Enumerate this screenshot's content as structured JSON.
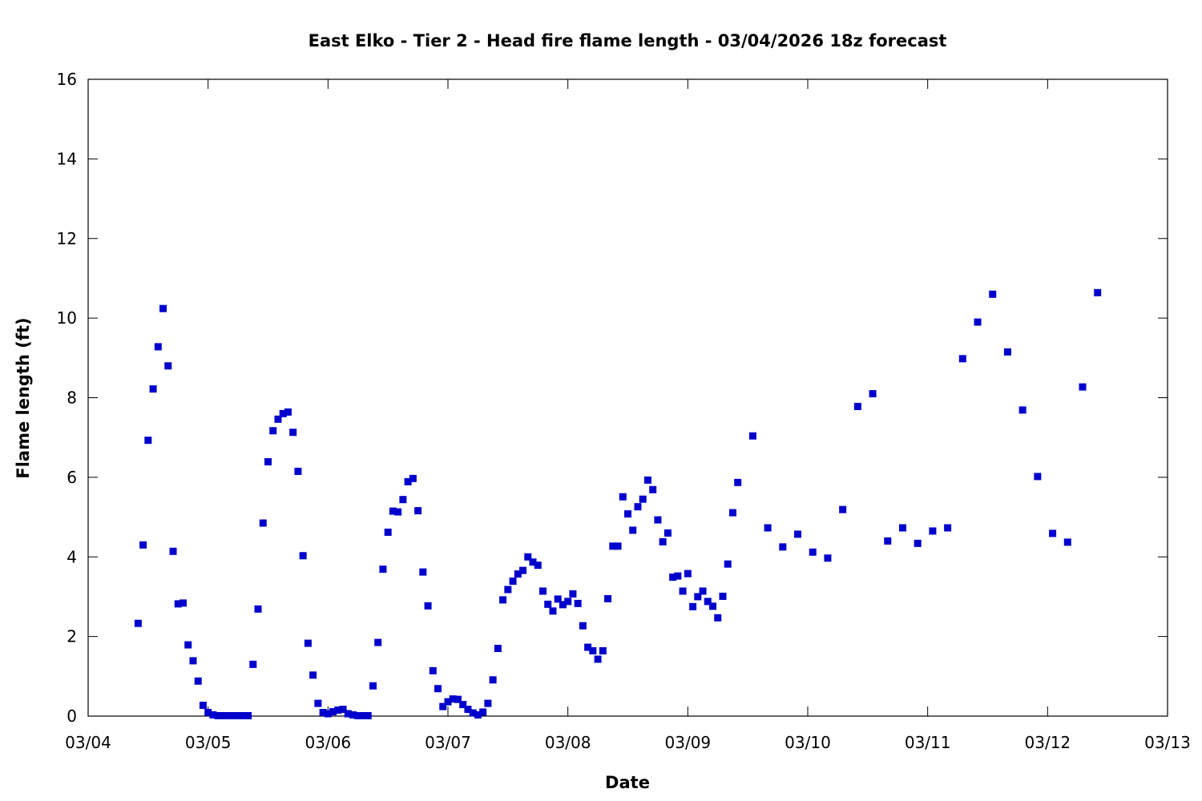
{
  "chart_data": {
    "type": "scatter",
    "title": "East Elko - Tier 2 - Head fire flame length - 03/04/2026 18z forecast",
    "xlabel": "Date",
    "ylabel": "Flame length (ft)",
    "xlim": [
      "03/04 00:00",
      "03/13 00:00"
    ],
    "ylim": [
      0,
      16
    ],
    "x_ticks": [
      "03/04",
      "03/05",
      "03/06",
      "03/07",
      "03/08",
      "03/09",
      "03/10",
      "03/11",
      "03/12",
      "03/13"
    ],
    "y_ticks": [
      "0",
      "2",
      "4",
      "6",
      "8",
      "10",
      "12",
      "14",
      "16"
    ],
    "grid": false,
    "legend": "none",
    "colors": {
      "marker": "#0000cc",
      "axis": "#000000"
    },
    "series": [
      {
        "x": [
          "03/04 10:00",
          "03/04 11:00",
          "03/04 12:00",
          "03/04 13:00",
          "03/04 14:00",
          "03/04 15:00",
          "03/04 16:00",
          "03/04 17:00",
          "03/04 18:00",
          "03/04 19:00",
          "03/04 20:00",
          "03/04 21:00",
          "03/04 22:00",
          "03/04 23:00",
          "03/05 00:00",
          "03/05 01:00",
          "03/05 02:00",
          "03/05 03:00",
          "03/05 04:00",
          "03/05 05:00",
          "03/05 06:00",
          "03/05 07:00",
          "03/05 08:00",
          "03/05 09:00",
          "03/05 10:00",
          "03/05 11:00",
          "03/05 12:00",
          "03/05 13:00",
          "03/05 14:00",
          "03/05 15:00",
          "03/05 16:00",
          "03/05 17:00",
          "03/05 18:00",
          "03/05 19:00",
          "03/05 20:00",
          "03/05 21:00",
          "03/05 22:00",
          "03/05 23:00",
          "03/06 00:00",
          "03/06 01:00",
          "03/06 02:00",
          "03/06 03:00",
          "03/06 04:00",
          "03/06 05:00",
          "03/06 06:00",
          "03/06 07:00",
          "03/06 08:00",
          "03/06 09:00",
          "03/06 10:00",
          "03/06 11:00",
          "03/06 12:00",
          "03/06 13:00",
          "03/06 14:00",
          "03/06 15:00",
          "03/06 16:00",
          "03/06 17:00",
          "03/06 18:00",
          "03/06 19:00",
          "03/06 20:00",
          "03/06 21:00",
          "03/06 22:00",
          "03/06 23:00",
          "03/07 00:00",
          "03/07 01:00",
          "03/07 02:00",
          "03/07 03:00",
          "03/07 04:00",
          "03/07 05:00",
          "03/07 06:00",
          "03/07 07:00",
          "03/07 08:00",
          "03/07 09:00",
          "03/07 10:00",
          "03/07 11:00",
          "03/07 12:00",
          "03/07 13:00",
          "03/07 14:00",
          "03/07 15:00",
          "03/07 16:00",
          "03/07 17:00",
          "03/07 18:00",
          "03/07 19:00",
          "03/07 20:00",
          "03/07 21:00",
          "03/07 22:00",
          "03/07 23:00",
          "03/08 00:00",
          "03/08 01:00",
          "03/08 02:00",
          "03/08 03:00",
          "03/08 04:00",
          "03/08 05:00",
          "03/08 06:00",
          "03/08 07:00",
          "03/08 08:00",
          "03/08 09:00",
          "03/08 10:00",
          "03/08 11:00",
          "03/08 12:00",
          "03/08 13:00",
          "03/08 14:00",
          "03/08 15:00",
          "03/08 16:00",
          "03/08 17:00",
          "03/08 18:00",
          "03/08 19:00",
          "03/08 20:00",
          "03/08 21:00",
          "03/08 22:00",
          "03/08 23:00",
          "03/09 00:00",
          "03/09 01:00",
          "03/09 02:00",
          "03/09 03:00",
          "03/09 04:00",
          "03/09 05:00",
          "03/09 06:00",
          "03/09 07:00",
          "03/09 08:00",
          "03/09 09:00",
          "03/09 10:00",
          "03/09 13:00",
          "03/09 16:00",
          "03/09 19:00",
          "03/09 22:00",
          "03/10 01:00",
          "03/10 04:00",
          "03/10 07:00",
          "03/10 10:00",
          "03/10 13:00",
          "03/10 16:00",
          "03/10 19:00",
          "03/10 22:00",
          "03/11 01:00",
          "03/11 04:00",
          "03/11 07:00",
          "03/11 10:00",
          "03/11 13:00",
          "03/11 16:00",
          "03/11 19:00",
          "03/11 22:00",
          "03/12 01:00",
          "03/12 04:00",
          "03/12 07:00",
          "03/12 10:00"
        ],
        "y": [
          2.33,
          4.3,
          6.93,
          8.22,
          9.28,
          10.24,
          8.8,
          4.14,
          2.82,
          2.84,
          1.79,
          1.39,
          0.88,
          0.27,
          0.09,
          0.03,
          0.01,
          0.01,
          0.01,
          0.01,
          0.01,
          0.01,
          0.01,
          1.3,
          2.69,
          4.85,
          6.39,
          7.17,
          7.46,
          7.6,
          7.64,
          7.13,
          6.15,
          4.03,
          1.83,
          1.03,
          0.32,
          0.09,
          0.06,
          0.11,
          0.15,
          0.17,
          0.06,
          0.03,
          0.01,
          0.01,
          0.01,
          0.76,
          1.85,
          3.69,
          4.62,
          5.15,
          5.13,
          5.44,
          5.89,
          5.97,
          5.16,
          3.62,
          2.77,
          1.14,
          0.69,
          0.24,
          0.36,
          0.43,
          0.42,
          0.29,
          0.17,
          0.08,
          0.03,
          0.1,
          0.32,
          0.91,
          1.7,
          2.92,
          3.18,
          3.39,
          3.57,
          3.66,
          4.0,
          3.87,
          3.79,
          3.14,
          2.81,
          2.64,
          2.94,
          2.8,
          2.88,
          3.07,
          2.83,
          2.27,
          1.73,
          1.64,
          1.43,
          1.64,
          2.95,
          4.27,
          4.27,
          5.51,
          5.08,
          4.67,
          5.26,
          5.45,
          5.93,
          5.69,
          4.93,
          4.38,
          4.6,
          3.49,
          3.52,
          3.14,
          3.58,
          2.75,
          3.0,
          3.14,
          2.88,
          2.76,
          2.47,
          3.01,
          3.82,
          5.11,
          5.87,
          7.04,
          4.73,
          4.25,
          4.57,
          4.12,
          3.97,
          5.19,
          7.78,
          8.1,
          4.4,
          4.73,
          4.34,
          4.65,
          4.73,
          8.98,
          9.9,
          10.6,
          9.15,
          7.69,
          6.02,
          4.59,
          4.37,
          8.27,
          10.64
        ]
      }
    ]
  }
}
